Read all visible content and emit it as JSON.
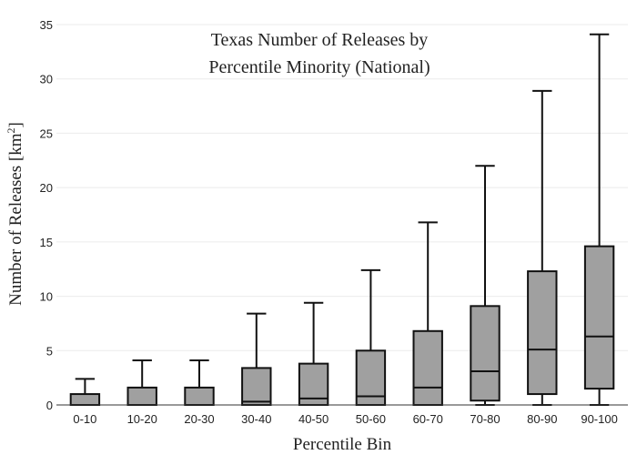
{
  "chart_data": {
    "type": "box",
    "title_lines": [
      "Texas Number of Releases by",
      "Percentile Minority (National)"
    ],
    "xlabel": "Percentile Bin",
    "ylabel": {
      "text": "Number of Releases  [km",
      "superscript": "2",
      "suffix": "]"
    },
    "ylim": [
      0,
      35
    ],
    "yticks": [
      "0",
      "5",
      "10",
      "15",
      "20",
      "25",
      "30",
      "35"
    ],
    "grid": true,
    "legend": "none",
    "colors": {
      "box_fill": "#a0a0a0",
      "box_stroke": "#111111",
      "grid": "#ebebeb"
    },
    "categories": [
      "0-10",
      "10-20",
      "20-30",
      "30-40",
      "40-50",
      "50-60",
      "60-70",
      "70-80",
      "80-90",
      "90-100"
    ],
    "boxes": [
      {
        "min": 0,
        "q1": 0,
        "median": 0,
        "q3": 1.0,
        "max": 2.4
      },
      {
        "min": 0,
        "q1": 0,
        "median": 0,
        "q3": 1.6,
        "max": 4.1
      },
      {
        "min": 0,
        "q1": 0,
        "median": 0,
        "q3": 1.6,
        "max": 4.1
      },
      {
        "min": 0,
        "q1": 0,
        "median": 0.3,
        "q3": 3.4,
        "max": 8.4
      },
      {
        "min": 0,
        "q1": 0,
        "median": 0.6,
        "q3": 3.8,
        "max": 9.4
      },
      {
        "min": 0,
        "q1": 0,
        "median": 0.8,
        "q3": 5.0,
        "max": 12.4
      },
      {
        "min": 0,
        "q1": 0,
        "median": 1.6,
        "q3": 6.8,
        "max": 16.8
      },
      {
        "min": 0,
        "q1": 0.4,
        "median": 3.1,
        "q3": 9.1,
        "max": 22.0
      },
      {
        "min": 0,
        "q1": 1.0,
        "median": 5.1,
        "q3": 12.3,
        "max": 28.9
      },
      {
        "min": 0,
        "q1": 1.5,
        "median": 6.3,
        "q3": 14.6,
        "max": 34.1
      }
    ]
  }
}
